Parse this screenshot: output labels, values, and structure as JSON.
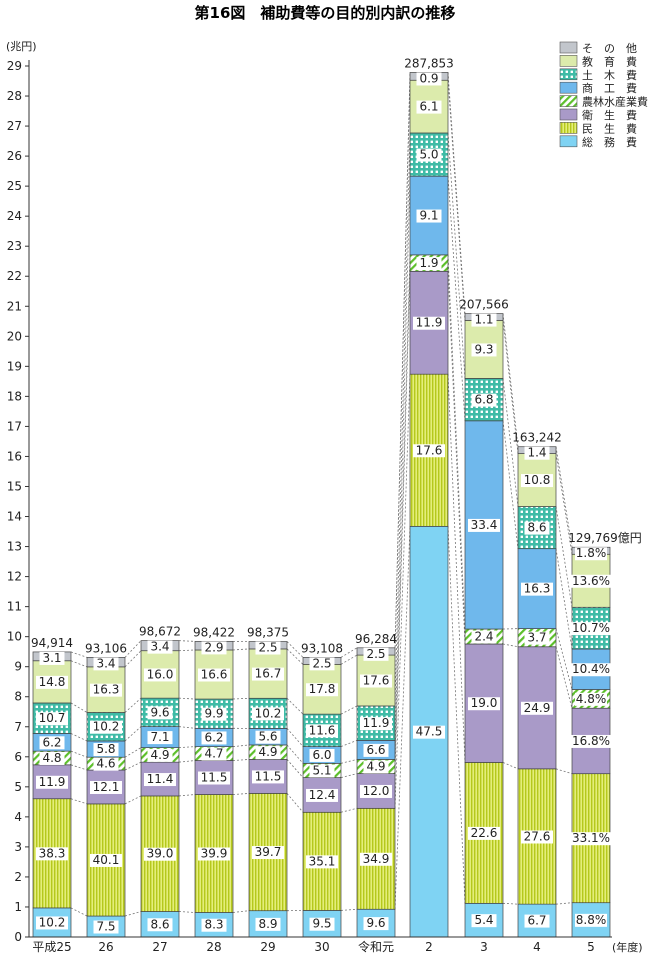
{
  "chart_data": {
    "type": "bar",
    "stacked": true,
    "title": "第16図　補助費等の目的別内訳の推移",
    "y_unit": "(兆円)",
    "x_unit": "(年度)",
    "ylim": [
      0,
      29
    ],
    "yticks": [
      0,
      1,
      2,
      3,
      4,
      5,
      6,
      7,
      8,
      9,
      10,
      11,
      12,
      13,
      14,
      15,
      16,
      17,
      18,
      19,
      20,
      21,
      22,
      23,
      24,
      25,
      26,
      27,
      28,
      29
    ],
    "categories": [
      "平成25",
      "26",
      "27",
      "28",
      "29",
      "30",
      "令和元",
      "2",
      "3",
      "4",
      "5"
    ],
    "totals": [
      94914,
      93106,
      98672,
      98422,
      98375,
      93108,
      96284,
      287853,
      207566,
      163242,
      129769
    ],
    "total_labels": [
      "94,914",
      "93,106",
      "98,672",
      "98,422",
      "98,375",
      "93,108",
      "96,284",
      "287,853",
      "207,566",
      "163,242",
      "129,769億円"
    ],
    "series": [
      {
        "name": "総　務　費",
        "color": "#7fcdf0",
        "labels": [
          "10.2",
          "7.5",
          "8.6",
          "8.3",
          "8.9",
          "9.5",
          "9.6",
          "47.5",
          "5.4",
          "6.7",
          "8.8%"
        ]
      },
      {
        "name": "民　生　費",
        "color": "#c8dc2e",
        "labels": [
          "38.3",
          "40.1",
          "39.0",
          "39.9",
          "39.7",
          "35.1",
          "34.9",
          "17.6",
          "22.6",
          "27.6",
          "33.1%"
        ]
      },
      {
        "name": "衛　生　費",
        "color": "#a99ac8",
        "labels": [
          "11.9",
          "12.1",
          "11.4",
          "11.5",
          "11.5",
          "12.4",
          "12.0",
          "11.9",
          "19.0",
          "24.9",
          "16.8%"
        ]
      },
      {
        "name": "農林水産業費",
        "color": "#a6d65a",
        "labels": [
          "4.8",
          "4.6",
          "4.9",
          "4.7",
          "4.9",
          "5.1",
          "4.9",
          "1.9",
          "2.4",
          "3.7",
          "4.8%"
        ]
      },
      {
        "name": "商　工　費",
        "color": "#6fb8ec",
        "labels": [
          "6.2",
          "5.8",
          "7.1",
          "6.2",
          "5.6",
          "6.0",
          "6.6",
          "9.1",
          "33.4",
          "16.3",
          "10.4%"
        ]
      },
      {
        "name": "土　木　費",
        "color": "#4fc4b0",
        "labels": [
          "10.7",
          "10.2",
          "9.6",
          "9.9",
          "10.2",
          "11.6",
          "11.9",
          "5.0",
          "6.8",
          "8.6",
          "10.7%"
        ]
      },
      {
        "name": "教　育　費",
        "color": "#d9eaa6",
        "labels": [
          "14.8",
          "16.3",
          "16.0",
          "16.6",
          "16.7",
          "17.8",
          "17.6",
          "6.1",
          "9.3",
          "10.8",
          "13.6%"
        ]
      },
      {
        "name": "そ　の　他",
        "color": "#c2c6cc",
        "labels": [
          "3.1",
          "3.4",
          "3.4",
          "2.9",
          "2.5",
          "2.5",
          "2.5",
          "0.9",
          "1.1",
          "1.4",
          "1.8%"
        ]
      }
    ]
  }
}
